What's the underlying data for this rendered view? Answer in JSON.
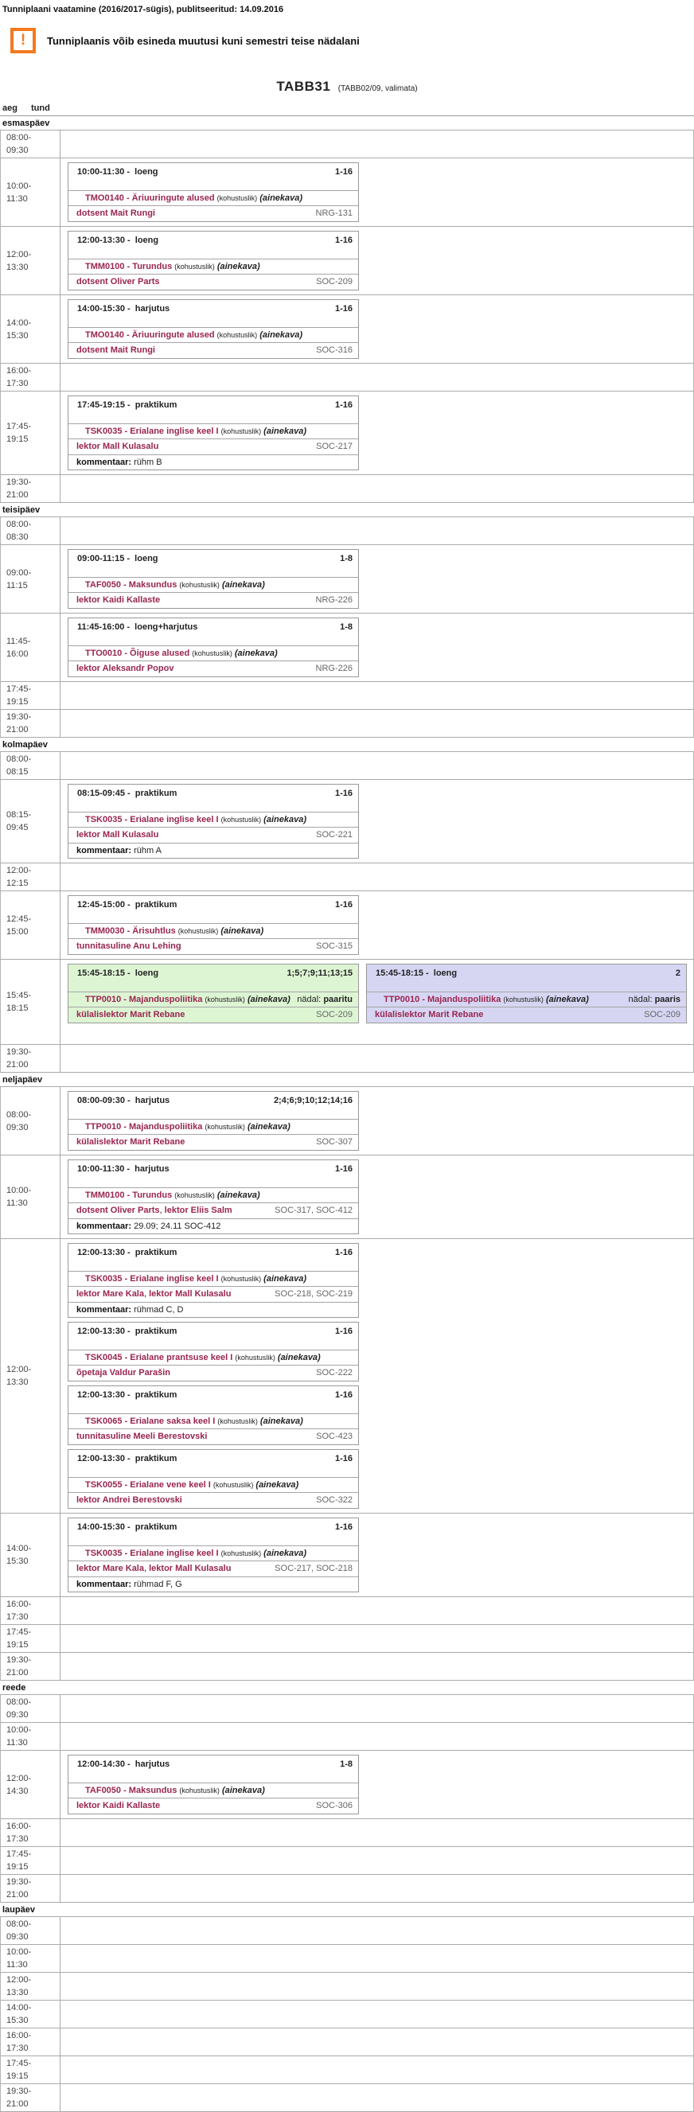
{
  "page": {
    "title": "Tunniplaani vaatamine (2016/2017-sügis), publitseeritud: 14.09.2016",
    "warning_icon_glyph": "!",
    "warning": "Tunniplaanis võib esineda muutusi kuni semestri teise nädalani",
    "group_code": "TABB31",
    "group_subtitle": "(TABB02/09, valimata)"
  },
  "labels": {
    "aeg": "aeg",
    "tund": "tund",
    "mandatory": "(kohustuslik)",
    "ainekava": "(ainekava)",
    "comment": "kommentaar:",
    "week": "nädal:",
    "time_type_sep": "-"
  },
  "colors": {
    "link_maroon": "#992550",
    "odd_week_green": "#ddf5d3",
    "even_week_purple": "#d6d6f3",
    "warning_orange": "#f4791f"
  },
  "days": [
    {
      "name": "esmaspäev",
      "rows": [
        {
          "start": "08:00-",
          "end": "09:30",
          "events": []
        },
        {
          "start": "10:00-",
          "end": "11:30",
          "events": [
            {
              "time": "10:00-11:30",
              "type": "loeng",
              "weeks": "1-16",
              "course": "TMO0140 - Äriuuringute alused",
              "staff": [
                "dotsent Mait Rungi"
              ],
              "rooms": [
                "NRG-131"
              ]
            }
          ]
        },
        {
          "start": "12:00-",
          "end": "13:30",
          "events": [
            {
              "time": "12:00-13:30",
              "type": "loeng",
              "weeks": "1-16",
              "course": "TMM0100 - Turundus",
              "staff": [
                "dotsent Oliver Parts"
              ],
              "rooms": [
                "SOC-209"
              ]
            }
          ]
        },
        {
          "start": "14:00-",
          "end": "15:30",
          "events": [
            {
              "time": "14:00-15:30",
              "type": "harjutus",
              "weeks": "1-16",
              "course": "TMO0140 - Äriuuringute alused",
              "staff": [
                "dotsent Mait Rungi"
              ],
              "rooms": [
                "SOC-316"
              ]
            }
          ]
        },
        {
          "start": "16:00-",
          "end": "17:30",
          "events": []
        },
        {
          "start": "17:45-",
          "end": "19:15",
          "events": [
            {
              "time": "17:45-19:15",
              "type": "praktikum",
              "weeks": "1-16",
              "course": "TSK0035 - Erialane inglise keel I",
              "staff": [
                "lektor Mall Kulasalu"
              ],
              "rooms": [
                "SOC-217"
              ],
              "comment": "rühm B"
            }
          ]
        },
        {
          "start": "19:30-",
          "end": "21:00",
          "events": []
        }
      ]
    },
    {
      "name": "teisipäev",
      "rows": [
        {
          "start": "08:00-",
          "end": "08:30",
          "events": []
        },
        {
          "start": "09:00-",
          "end": "11:15",
          "events": [
            {
              "time": "09:00-11:15",
              "type": "loeng",
              "weeks": "1-8",
              "course": "TAF0050 - Maksundus",
              "staff": [
                "lektor Kaidi Kallaste"
              ],
              "rooms": [
                "NRG-226"
              ]
            }
          ]
        },
        {
          "start": "11:45-",
          "end": "16:00",
          "events": [
            {
              "time": "11:45-16:00",
              "type": "loeng+harjutus",
              "weeks": "1-8",
              "course": "TTO0010 - Õiguse alused",
              "staff": [
                "lektor Aleksandr Popov"
              ],
              "rooms": [
                "NRG-226"
              ]
            }
          ]
        },
        {
          "start": "17:45-",
          "end": "19:15",
          "events": []
        },
        {
          "start": "19:30-",
          "end": "21:00",
          "events": []
        }
      ]
    },
    {
      "name": "kolmapäev",
      "rows": [
        {
          "start": "08:00-",
          "end": "08:15",
          "events": []
        },
        {
          "start": "08:15-",
          "end": "09:45",
          "events": [
            {
              "time": "08:15-09:45",
              "type": "praktikum",
              "weeks": "1-16",
              "course": "TSK0035 - Erialane inglise keel I",
              "staff": [
                "lektor Mall Kulasalu"
              ],
              "rooms": [
                "SOC-221"
              ],
              "comment": "rühm A"
            }
          ]
        },
        {
          "start": "12:00-",
          "end": "12:15",
          "events": []
        },
        {
          "start": "12:45-",
          "end": "15:00",
          "events": [
            {
              "time": "12:45-15:00",
              "type": "praktikum",
              "weeks": "1-16",
              "course": "TMM0030 - Ärisuhtlus",
              "staff": [
                "tunnitasuline Anu Lehing"
              ],
              "rooms": [
                "SOC-315"
              ]
            }
          ]
        },
        {
          "start": "15:45-",
          "end": "18:15",
          "parallel": true,
          "events": [
            {
              "time": "15:45-18:15",
              "type": "loeng",
              "weeks": "1;5;7;9;11;13;15",
              "course": "TTP0010 - Majanduspoliitika",
              "week_parity": "paaritu",
              "staff": [
                "külalislektor Marit Rebane"
              ],
              "rooms": [
                "SOC-209"
              ],
              "color": "green"
            },
            {
              "time": "15:45-18:15",
              "type": "loeng",
              "weeks": "2",
              "course": "TTP0010 - Majanduspoliitika",
              "week_parity": "paaris",
              "staff": [
                "külalislektor Marit Rebane"
              ],
              "rooms": [
                "SOC-209"
              ],
              "color": "purple"
            }
          ]
        },
        {
          "start": "19:30-",
          "end": "21:00",
          "events": []
        }
      ]
    },
    {
      "name": "neljapäev",
      "rows": [
        {
          "start": "08:00-",
          "end": "09:30",
          "events": [
            {
              "time": "08:00-09:30",
              "type": "harjutus",
              "weeks": "2;4;6;9;10;12;14;16",
              "course": "TTP0010 - Majanduspoliitika",
              "staff": [
                "külalislektor Marit Rebane"
              ],
              "rooms": [
                "SOC-307"
              ]
            }
          ]
        },
        {
          "start": "10:00-",
          "end": "11:30",
          "events": [
            {
              "time": "10:00-11:30",
              "type": "harjutus",
              "weeks": "1-16",
              "course": "TMM0100 - Turundus",
              "staff": [
                "dotsent Oliver Parts",
                "lektor Eliis Salm"
              ],
              "rooms": [
                "SOC-317",
                "SOC-412"
              ],
              "comment": "29.09; 24.11 SOC-412"
            }
          ]
        },
        {
          "start": "12:00-",
          "end": "13:30",
          "events": [
            {
              "time": "12:00-13:30",
              "type": "praktikum",
              "weeks": "1-16",
              "course": "TSK0035 - Erialane inglise keel I",
              "staff": [
                "lektor Mare Kala",
                "lektor Mall Kulasalu"
              ],
              "rooms": [
                "SOC-218",
                "SOC-219"
              ],
              "comment": "rühmad C, D"
            },
            {
              "time": "12:00-13:30",
              "type": "praktikum",
              "weeks": "1-16",
              "course": "TSK0045 - Erialane prantsuse keel I",
              "staff": [
                "õpetaja Valdur Parašin"
              ],
              "rooms": [
                "SOC-222"
              ]
            },
            {
              "time": "12:00-13:30",
              "type": "praktikum",
              "weeks": "1-16",
              "course": "TSK0065 - Erialane saksa keel I",
              "staff": [
                "tunnitasuline Meeli Berestovski"
              ],
              "rooms": [
                "SOC-423"
              ]
            },
            {
              "time": "12:00-13:30",
              "type": "praktikum",
              "weeks": "1-16",
              "course": "TSK0055 - Erialane vene keel I",
              "staff": [
                "lektor Andrei Berestovski"
              ],
              "rooms": [
                "SOC-322"
              ]
            }
          ]
        },
        {
          "start": "14:00-",
          "end": "15:30",
          "events": [
            {
              "time": "14:00-15:30",
              "type": "praktikum",
              "weeks": "1-16",
              "course": "TSK0035 - Erialane inglise keel I",
              "staff": [
                "lektor Mare Kala",
                "lektor Mall Kulasalu"
              ],
              "rooms": [
                "SOC-217",
                "SOC-218"
              ],
              "comment": "rühmad F, G"
            }
          ]
        },
        {
          "start": "16:00-",
          "end": "17:30",
          "events": []
        },
        {
          "start": "17:45-",
          "end": "19:15",
          "events": []
        },
        {
          "start": "19:30-",
          "end": "21:00",
          "events": []
        }
      ]
    },
    {
      "name": "reede",
      "rows": [
        {
          "start": "08:00-",
          "end": "09:30",
          "events": []
        },
        {
          "start": "10:00-",
          "end": "11:30",
          "events": []
        },
        {
          "start": "12:00-",
          "end": "14:30",
          "events": [
            {
              "time": "12:00-14:30",
              "type": "harjutus",
              "weeks": "1-8",
              "course": "TAF0050 - Maksundus",
              "staff": [
                "lektor Kaidi Kallaste"
              ],
              "rooms": [
                "SOC-306"
              ]
            }
          ]
        },
        {
          "start": "16:00-",
          "end": "17:30",
          "events": []
        },
        {
          "start": "17:45-",
          "end": "19:15",
          "events": []
        },
        {
          "start": "19:30-",
          "end": "21:00",
          "events": []
        }
      ]
    },
    {
      "name": "laupäev",
      "rows": [
        {
          "start": "08:00-",
          "end": "09:30",
          "events": []
        },
        {
          "start": "10:00-",
          "end": "11:30",
          "events": []
        },
        {
          "start": "12:00-",
          "end": "13:30",
          "events": []
        },
        {
          "start": "14:00-",
          "end": "15:30",
          "events": []
        },
        {
          "start": "16:00-",
          "end": "17:30",
          "events": []
        },
        {
          "start": "17:45-",
          "end": "19:15",
          "events": []
        },
        {
          "start": "19:30-",
          "end": "21:00",
          "events": []
        }
      ]
    }
  ]
}
